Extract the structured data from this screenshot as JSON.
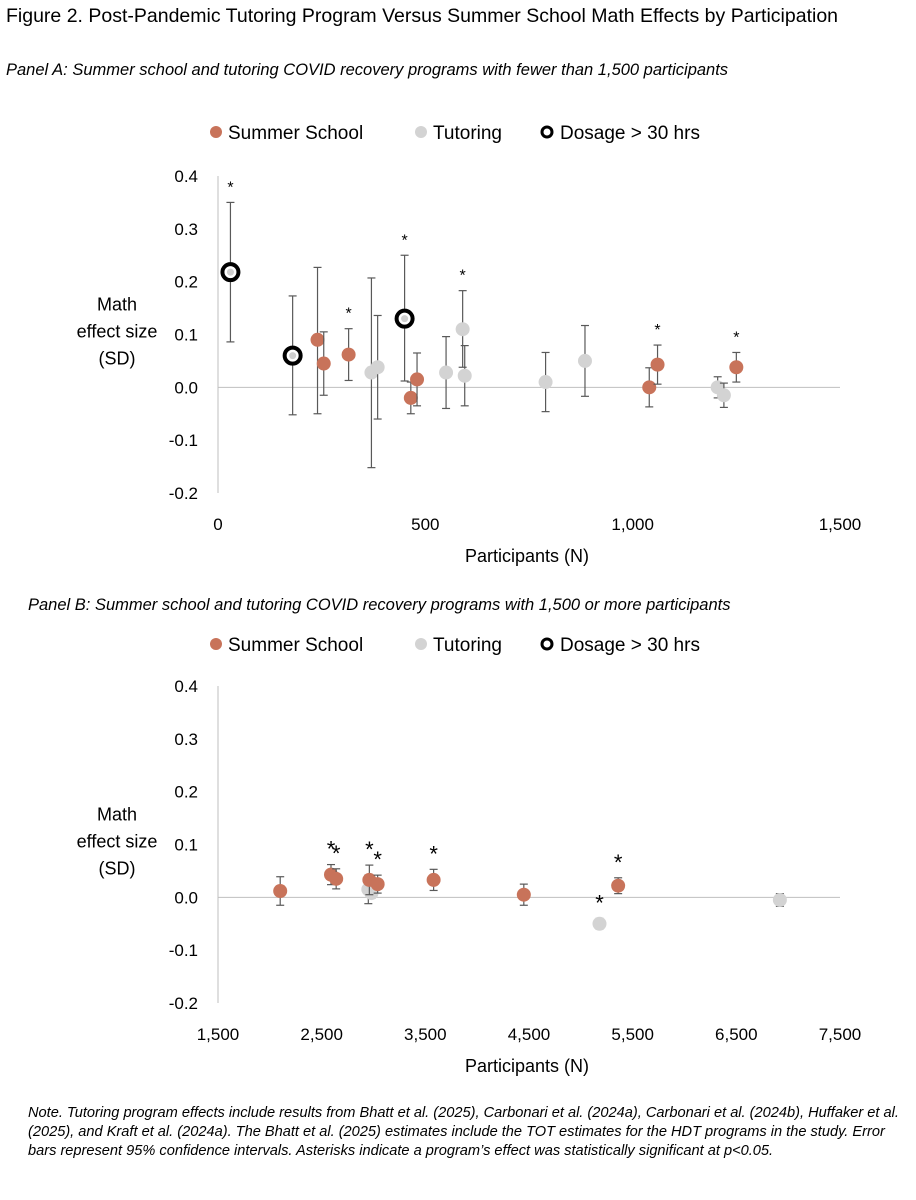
{
  "figure_title": "Figure 2. Post-Pandemic Tutoring Program Versus Summer School Math Effects by Participation",
  "note": "Note. Tutoring program effects include results from Bhatt et al. (2025), Carbonari et al. (2024a), Carbonari et al. (2024b), Huffaker et al. (2025), and Kraft et al. (2024a). The Bhatt et al. (2025) estimates include the TOT estimates for the HDT programs in the study. Error bars represent 95% confidence intervals. Asterisks indicate a program’s effect was statistically significant at p<0.05.",
  "colors": {
    "summer": "#C8735A",
    "tutoring": "#D3D3D3",
    "dosage_ring": "#000000",
    "error_bar": "#595959",
    "axis": "#BFBFBF"
  },
  "chart_data": [
    {
      "type": "scatter",
      "title": "Panel A: Summer school and tutoring COVID recovery programs with fewer than 1,500 participants",
      "xlabel": "Participants (N)",
      "ylabel": [
        "Math",
        "effect size",
        "(SD)"
      ],
      "xlim": [
        0,
        1500
      ],
      "ylim": [
        -0.2,
        0.4
      ],
      "x_ticks": [
        0,
        500,
        1000,
        1500
      ],
      "x_tick_labels": [
        "0",
        "500",
        "1,000",
        "1,500"
      ],
      "y_ticks": [
        -0.2,
        -0.1,
        0.0,
        0.1,
        0.2,
        0.3,
        0.4
      ],
      "y_tick_labels": [
        "-0.2",
        "-0.1",
        "0.0",
        "0.1",
        "0.2",
        "0.3",
        "0.4"
      ],
      "legend": {
        "summer": "Summer School",
        "tutoring": "Tutoring",
        "dosage": "Dosage > 30 hrs"
      },
      "series": [
        {
          "name": "Summer School",
          "points": [
            {
              "x": 240,
              "y": 0.09,
              "lo": -0.05,
              "hi": 0.227,
              "sig": false
            },
            {
              "x": 255,
              "y": 0.045,
              "lo": -0.015,
              "hi": 0.105,
              "sig": false
            },
            {
              "x": 315,
              "y": 0.062,
              "lo": 0.013,
              "hi": 0.111,
              "sig": true
            },
            {
              "x": 465,
              "y": -0.02,
              "lo": -0.05,
              "hi": 0.01,
              "sig": false
            },
            {
              "x": 480,
              "y": 0.015,
              "lo": -0.035,
              "hi": 0.065,
              "sig": false
            },
            {
              "x": 1040,
              "y": 0.0,
              "lo": -0.037,
              "hi": 0.037,
              "sig": false
            },
            {
              "x": 1060,
              "y": 0.043,
              "lo": 0.006,
              "hi": 0.08,
              "sig": true
            },
            {
              "x": 1250,
              "y": 0.038,
              "lo": 0.01,
              "hi": 0.066,
              "sig": true
            }
          ]
        },
        {
          "name": "Tutoring",
          "points": [
            {
              "x": 370,
              "y": 0.028,
              "lo": -0.152,
              "hi": 0.207,
              "sig": false
            },
            {
              "x": 385,
              "y": 0.038,
              "lo": -0.06,
              "hi": 0.136,
              "sig": false
            },
            {
              "x": 550,
              "y": 0.028,
              "lo": -0.04,
              "hi": 0.096,
              "sig": false
            },
            {
              "x": 590,
              "y": 0.11,
              "lo": 0.038,
              "hi": 0.183,
              "sig": true
            },
            {
              "x": 595,
              "y": 0.022,
              "lo": -0.035,
              "hi": 0.079,
              "sig": false
            },
            {
              "x": 790,
              "y": 0.01,
              "lo": -0.046,
              "hi": 0.066,
              "sig": false
            },
            {
              "x": 885,
              "y": 0.05,
              "lo": -0.017,
              "hi": 0.117,
              "sig": false
            },
            {
              "x": 1205,
              "y": 0.0,
              "lo": -0.02,
              "hi": 0.02,
              "sig": false
            },
            {
              "x": 1220,
              "y": -0.015,
              "lo": -0.038,
              "hi": 0.008,
              "sig": false
            }
          ]
        },
        {
          "name": "Dosage > 30 hrs",
          "points": [
            {
              "x": 30,
              "y": 0.218,
              "lo": 0.086,
              "hi": 0.35,
              "sig": true
            },
            {
              "x": 180,
              "y": 0.06,
              "lo": -0.052,
              "hi": 0.173,
              "sig": false
            },
            {
              "x": 450,
              "y": 0.13,
              "lo": 0.012,
              "hi": 0.25,
              "sig": true
            }
          ]
        }
      ]
    },
    {
      "type": "scatter",
      "title": "Panel B: Summer school and tutoring COVID recovery programs with 1,500 or more participants",
      "xlabel": "Participants (N)",
      "ylabel": [
        "Math",
        "effect size",
        "(SD)"
      ],
      "xlim": [
        1500,
        7500
      ],
      "ylim": [
        -0.2,
        0.4
      ],
      "x_ticks": [
        1500,
        2500,
        3500,
        4500,
        5500,
        6500,
        7500
      ],
      "x_tick_labels": [
        "1,500",
        "2,500",
        "3,500",
        "4,500",
        "5,500",
        "6,500",
        "7,500"
      ],
      "y_ticks": [
        -0.2,
        -0.1,
        0.0,
        0.1,
        0.2,
        0.3,
        0.4
      ],
      "y_tick_labels": [
        "-0.2",
        "-0.1",
        "0.0",
        "0.1",
        "0.2",
        "0.3",
        "0.4"
      ],
      "legend": {
        "summer": "Summer School",
        "tutoring": "Tutoring",
        "dosage": "Dosage > 30 hrs"
      },
      "series": [
        {
          "name": "Summer School",
          "points": [
            {
              "x": 2100,
              "y": 0.012,
              "lo": -0.015,
              "hi": 0.039,
              "sig": false
            },
            {
              "x": 2590,
              "y": 0.043,
              "lo": 0.024,
              "hi": 0.062,
              "sig": true
            },
            {
              "x": 2640,
              "y": 0.035,
              "lo": 0.016,
              "hi": 0.054,
              "sig": true
            },
            {
              "x": 2960,
              "y": 0.033,
              "lo": 0.005,
              "hi": 0.061,
              "sig": true
            },
            {
              "x": 3040,
              "y": 0.025,
              "lo": 0.008,
              "hi": 0.042,
              "sig": true
            },
            {
              "x": 3580,
              "y": 0.033,
              "lo": 0.013,
              "hi": 0.053,
              "sig": true
            },
            {
              "x": 4450,
              "y": 0.005,
              "lo": -0.015,
              "hi": 0.025,
              "sig": false
            },
            {
              "x": 5360,
              "y": 0.022,
              "lo": 0.007,
              "hi": 0.037,
              "sig": true
            }
          ]
        },
        {
          "name": "Tutoring",
          "points": [
            {
              "x": 2950,
              "y": 0.015,
              "lo": -0.012,
              "hi": 0.042,
              "sig": false
            },
            {
              "x": 2980,
              "y": 0.008,
              "lo": -0.002,
              "hi": 0.018,
              "sig": false
            },
            {
              "x": 5180,
              "y": -0.05,
              "lo": -0.06,
              "hi": -0.04,
              "sig": true
            },
            {
              "x": 6920,
              "y": -0.005,
              "lo": -0.017,
              "hi": 0.007,
              "sig": false
            }
          ]
        },
        {
          "name": "Dosage > 30 hrs",
          "points": []
        }
      ]
    }
  ]
}
